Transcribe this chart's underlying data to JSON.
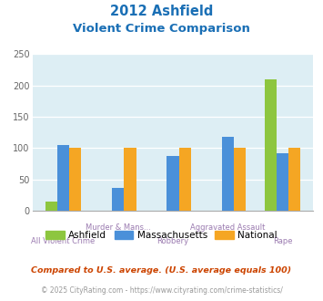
{
  "title_line1": "2012 Ashfield",
  "title_line2": "Violent Crime Comparison",
  "categories_row1": [
    "",
    "Murder & Mans...",
    "",
    "Aggravated Assault",
    ""
  ],
  "categories_row2": [
    "All Violent Crime",
    "",
    "Robbery",
    "",
    "Rape"
  ],
  "ashfield": [
    15,
    0,
    0,
    0,
    210
  ],
  "massachusetts": [
    105,
    37,
    87,
    118,
    92
  ],
  "national": [
    100,
    100,
    100,
    100,
    100
  ],
  "colors": {
    "ashfield": "#8dc63f",
    "massachusetts": "#4a90d9",
    "national": "#f5a623"
  },
  "ylim": [
    0,
    250
  ],
  "yticks": [
    0,
    50,
    100,
    150,
    200,
    250
  ],
  "plot_bg": "#ddeef4",
  "title_color": "#1a6fb5",
  "xlabel_color": "#9b7bb0",
  "footnote1": "Compared to U.S. average. (U.S. average equals 100)",
  "footnote2": "© 2025 CityRating.com - https://www.cityrating.com/crime-statistics/",
  "footnote1_color": "#cc4400",
  "footnote2_color": "#999999",
  "bar_width": 0.22,
  "group_positions": [
    0,
    1,
    2,
    3,
    4
  ]
}
